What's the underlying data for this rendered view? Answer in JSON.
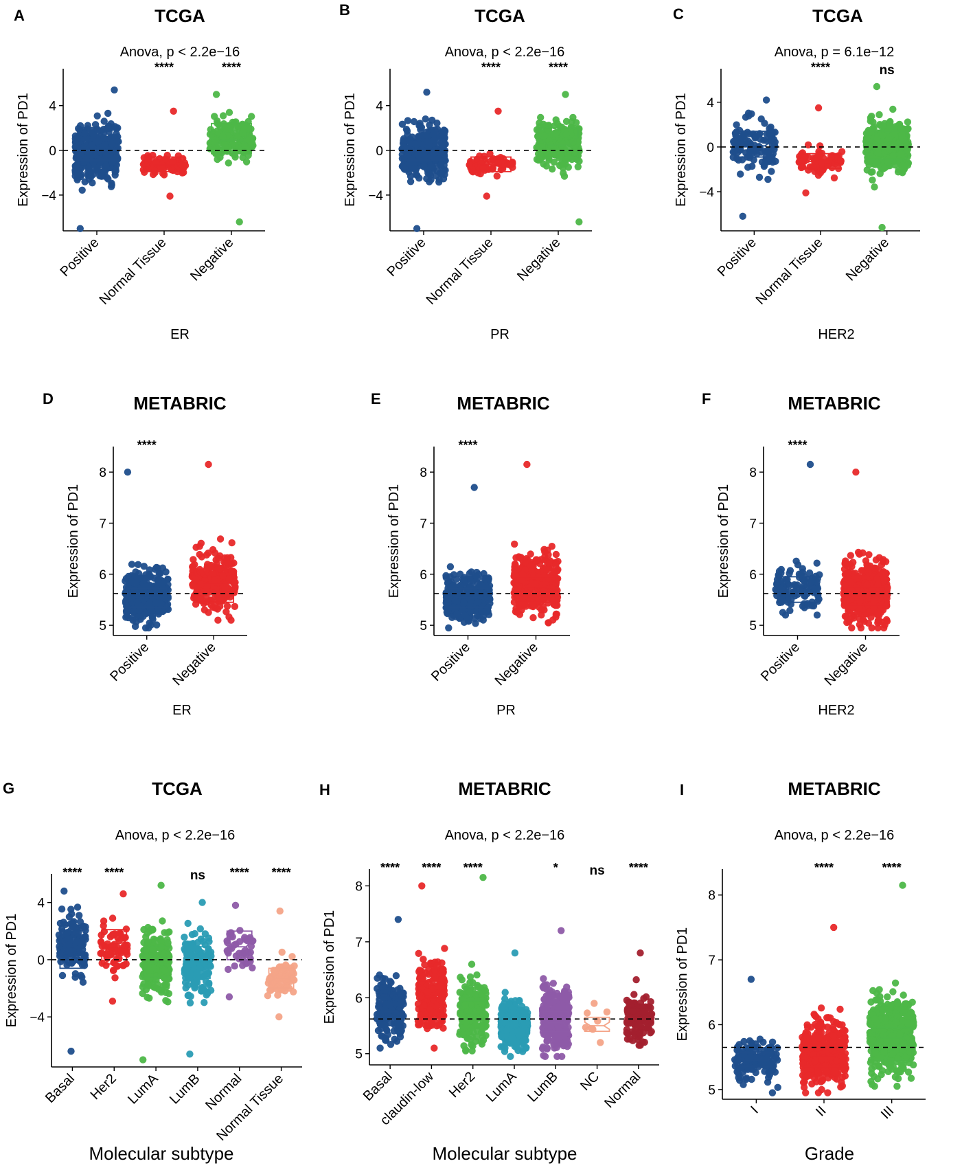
{
  "colors": {
    "Positive": "#1F4E8C",
    "Normal Tissue": "#E8292A",
    "Negative": "#4DB748",
    "Basal": "#1F4E8C",
    "Her2": "#E8292A",
    "LumA": "#4DB748",
    "LumB": "#2A9CB4",
    "Normal": "#8E5BA8",
    "Normal Tissue G": "#F4A488",
    "claudin-low": "#E8292A",
    "NC": "#F4A488",
    "Normal H": "#A3202E",
    "I": "#1F4E8C",
    "II": "#E8292A",
    "III": "#4DB748"
  },
  "chart_data": [
    {
      "panel": "A",
      "type": "box-jitter",
      "title": "TCGA",
      "subtitle": "Anova, p < 2.2e−16",
      "xlabel": "ER",
      "ylabel": "Expression of PD1",
      "ylim": [
        -7.2,
        7.3
      ],
      "yticks": [
        -4,
        0,
        4
      ],
      "ref_line": 0,
      "groups": [
        {
          "name": "Positive",
          "color": "#1F4E8C",
          "n": 420,
          "center": -0.1,
          "spread": 2.0,
          "min": -7.0,
          "max": 5.4,
          "q1": -0.9,
          "median": -0.1,
          "q3": 1.0,
          "sig": ""
        },
        {
          "name": "Normal Tissue",
          "color": "#E8292A",
          "n": 80,
          "center": -1.3,
          "spread": 0.9,
          "min": -4.1,
          "max": 3.5,
          "q1": -1.9,
          "median": -1.3,
          "q3": -0.6,
          "sig": "****"
        },
        {
          "name": "Negative",
          "color": "#4DB748",
          "n": 200,
          "center": 1.0,
          "spread": 1.7,
          "min": -6.4,
          "max": 5.0,
          "q1": -0.3,
          "median": 0.9,
          "q3": 2.4,
          "sig": "****"
        }
      ]
    },
    {
      "panel": "B",
      "type": "box-jitter",
      "title": "TCGA",
      "subtitle": "Anova, p < 2.2e−16",
      "xlabel": "PR",
      "ylabel": "Expression of PD1",
      "ylim": [
        -7.2,
        7.3
      ],
      "yticks": [
        -4,
        0,
        4
      ],
      "ref_line": 0,
      "groups": [
        {
          "name": "Positive",
          "color": "#1F4E8C",
          "n": 380,
          "center": -0.1,
          "spread": 2.0,
          "min": -7.0,
          "max": 5.2,
          "q1": -0.9,
          "median": -0.1,
          "q3": 1.0,
          "sig": ""
        },
        {
          "name": "Normal Tissue",
          "color": "#E8292A",
          "n": 80,
          "center": -1.3,
          "spread": 0.9,
          "min": -4.1,
          "max": 3.5,
          "q1": -1.9,
          "median": -1.3,
          "q3": -0.6,
          "sig": "****"
        },
        {
          "name": "Negative",
          "color": "#4DB748",
          "n": 260,
          "center": 0.6,
          "spread": 1.8,
          "min": -6.4,
          "max": 5.0,
          "q1": -0.6,
          "median": 0.5,
          "q3": 2.0,
          "sig": "****"
        }
      ]
    },
    {
      "panel": "C",
      "type": "box-jitter",
      "title": "TCGA",
      "subtitle": "Anova, p = 6.1e−12",
      "xlabel": "HER2",
      "ylabel": "Expression of PD1",
      "ylim": [
        -7.5,
        7.0
      ],
      "yticks": [
        -4,
        0,
        4
      ],
      "ref_line": 0,
      "groups": [
        {
          "name": "Positive",
          "color": "#1F4E8C",
          "n": 120,
          "center": 0.1,
          "spread": 1.8,
          "min": -6.2,
          "max": 4.2,
          "q1": -0.9,
          "median": 0.1,
          "q3": 1.4,
          "sig": ""
        },
        {
          "name": "Normal Tissue",
          "color": "#E8292A",
          "n": 80,
          "center": -1.3,
          "spread": 0.9,
          "min": -4.1,
          "max": 3.5,
          "q1": -1.9,
          "median": -1.3,
          "q3": -0.6,
          "sig": "****"
        },
        {
          "name": "Negative",
          "color": "#4DB748",
          "n": 420,
          "center": 0.0,
          "spread": 2.0,
          "min": -7.2,
          "max": 5.4,
          "q1": -1.1,
          "median": 0.0,
          "q3": 1.4,
          "sig": "ns"
        }
      ]
    },
    {
      "panel": "D",
      "type": "box-jitter",
      "title": "METABRIC",
      "subtitle": "",
      "xlabel": "ER",
      "ylabel": "Expression of PD1",
      "ylim": [
        4.8,
        8.5
      ],
      "yticks": [
        5,
        6,
        7,
        8
      ],
      "ref_line": 5.62,
      "groups": [
        {
          "name": "Positive",
          "color": "#1F4E8C",
          "n": 420,
          "center": 5.55,
          "spread": 0.4,
          "min": 4.95,
          "max": 8.0,
          "q1": 5.35,
          "median": 5.55,
          "q3": 5.72,
          "sig": "****"
        },
        {
          "name": "Negative",
          "color": "#E8292A",
          "n": 280,
          "center": 5.85,
          "spread": 0.5,
          "min": 5.1,
          "max": 8.15,
          "q1": 5.45,
          "median": 5.8,
          "q3": 6.1,
          "sig": ""
        }
      ]
    },
    {
      "panel": "E",
      "type": "box-jitter",
      "title": "METABRIC",
      "subtitle": "",
      "xlabel": "PR",
      "ylabel": "Expression of PD1",
      "ylim": [
        4.8,
        8.5
      ],
      "yticks": [
        5,
        6,
        7,
        8
      ],
      "ref_line": 5.62,
      "groups": [
        {
          "name": "Positive",
          "color": "#1F4E8C",
          "n": 320,
          "center": 5.55,
          "spread": 0.4,
          "min": 4.95,
          "max": 7.7,
          "q1": 5.35,
          "median": 5.55,
          "q3": 5.72,
          "sig": "****"
        },
        {
          "name": "Negative",
          "color": "#E8292A",
          "n": 380,
          "center": 5.8,
          "spread": 0.5,
          "min": 5.05,
          "max": 8.15,
          "q1": 5.45,
          "median": 5.75,
          "q3": 5.95,
          "sig": ""
        }
      ]
    },
    {
      "panel": "F",
      "type": "box-jitter",
      "title": "METABRIC",
      "subtitle": "",
      "xlabel": "HER2",
      "ylabel": "Expression of PD1",
      "ylim": [
        4.8,
        8.5
      ],
      "yticks": [
        5,
        6,
        7,
        8
      ],
      "ref_line": 5.62,
      "groups": [
        {
          "name": "Positive",
          "color": "#1F4E8C",
          "n": 120,
          "center": 5.75,
          "spread": 0.4,
          "min": 5.2,
          "max": 8.15,
          "q1": 5.45,
          "median": 5.7,
          "q3": 5.95,
          "sig": "****"
        },
        {
          "name": "Negative",
          "color": "#E8292A",
          "n": 480,
          "center": 5.65,
          "spread": 0.5,
          "min": 4.95,
          "max": 8.0,
          "q1": 5.4,
          "median": 5.6,
          "q3": 5.75,
          "sig": ""
        }
      ]
    },
    {
      "panel": "G",
      "type": "box-jitter",
      "title": "TCGA",
      "subtitle": "Anova, p < 2.2e−16",
      "xlabel": "Molecular subtype",
      "ylabel": "Expression of PD1",
      "ylim": [
        -7.5,
        6.0
      ],
      "yticks": [
        -4,
        0,
        4
      ],
      "ref_line": 0,
      "groups": [
        {
          "name": "Basal",
          "color": "#1F4E8C",
          "n": 140,
          "center": 1.0,
          "spread": 1.8,
          "min": -6.4,
          "max": 4.8,
          "q1": -0.6,
          "median": 0.9,
          "q3": 2.4,
          "sig": "****"
        },
        {
          "name": "Her2",
          "color": "#E8292A",
          "n": 70,
          "center": 0.8,
          "spread": 1.5,
          "min": -2.9,
          "max": 4.6,
          "q1": -0.3,
          "median": 0.8,
          "q3": 2.1,
          "sig": "****"
        },
        {
          "name": "LumA",
          "color": "#4DB748",
          "n": 260,
          "center": -0.2,
          "spread": 2.0,
          "min": -7.0,
          "max": 5.2,
          "q1": -1.2,
          "median": -0.2,
          "q3": 0.9,
          "sig": ""
        },
        {
          "name": "LumB",
          "color": "#2A9CB4",
          "n": 180,
          "center": -0.3,
          "spread": 1.9,
          "min": -6.6,
          "max": 4.0,
          "q1": -1.3,
          "median": -0.3,
          "q3": 0.9,
          "sig": "ns"
        },
        {
          "name": "Normal",
          "color": "#8E5BA8",
          "n": 45,
          "center": 0.9,
          "spread": 1.3,
          "min": -2.6,
          "max": 3.8,
          "q1": 0.0,
          "median": 0.9,
          "q3": 2.0,
          "sig": "****"
        },
        {
          "name": "Normal Tissue",
          "color": "#F4A488",
          "n": 80,
          "center": -1.3,
          "spread": 0.9,
          "min": -4.0,
          "max": 3.4,
          "q1": -2.0,
          "median": -1.3,
          "q3": -0.6,
          "sig": "****"
        }
      ]
    },
    {
      "panel": "H",
      "type": "box-jitter",
      "title": "METABRIC",
      "subtitle": "Anova, p < 2.2e−16",
      "xlabel": "Molecular subtype",
      "ylabel": "Expression of PD1",
      "ylim": [
        4.8,
        8.3
      ],
      "yticks": [
        5,
        6,
        7,
        8
      ],
      "ref_line": 5.62,
      "groups": [
        {
          "name": "Basal",
          "color": "#1F4E8C",
          "n": 200,
          "center": 5.8,
          "spread": 0.45,
          "min": 5.1,
          "max": 7.4,
          "q1": 5.5,
          "median": 5.75,
          "q3": 6.05,
          "sig": "****"
        },
        {
          "name": "claudin-low",
          "color": "#E8292A",
          "n": 220,
          "center": 6.05,
          "spread": 0.55,
          "min": 5.1,
          "max": 8.0,
          "q1": 5.65,
          "median": 6.0,
          "q3": 6.3,
          "sig": "****"
        },
        {
          "name": "Her2",
          "color": "#4DB748",
          "n": 200,
          "center": 5.75,
          "spread": 0.5,
          "min": 5.05,
          "max": 8.15,
          "q1": 5.45,
          "median": 5.7,
          "q3": 5.95,
          "sig": "****"
        },
        {
          "name": "LumA",
          "color": "#2A9CB4",
          "n": 420,
          "center": 5.5,
          "spread": 0.35,
          "min": 4.95,
          "max": 6.8,
          "q1": 5.35,
          "median": 5.5,
          "q3": 5.68,
          "sig": ""
        },
        {
          "name": "LumB",
          "color": "#8E5BA8",
          "n": 320,
          "center": 5.6,
          "spread": 0.45,
          "min": 4.95,
          "max": 7.2,
          "q1": 5.4,
          "median": 5.55,
          "q3": 5.75,
          "sig": "*"
        },
        {
          "name": "NC",
          "color": "#F4A488",
          "n": 8,
          "center": 5.55,
          "spread": 0.3,
          "min": 5.2,
          "max": 5.9,
          "q1": 5.4,
          "median": 5.5,
          "q3": 5.65,
          "sig": "ns"
        },
        {
          "name": "Normal",
          "color": "#A3202E",
          "n": 120,
          "center": 5.65,
          "spread": 0.35,
          "min": 5.15,
          "max": 6.8,
          "q1": 5.5,
          "median": 5.65,
          "q3": 5.8,
          "sig": "****"
        }
      ]
    },
    {
      "panel": "I",
      "type": "box-jitter",
      "title": "METABRIC",
      "subtitle": "Anova, p < 2.2e−16",
      "xlabel": "Grade",
      "ylabel": "Expression of PD1",
      "ylim": [
        4.85,
        8.4
      ],
      "yticks": [
        5,
        6,
        7,
        8
      ],
      "ref_line": 5.65,
      "groups": [
        {
          "name": "I",
          "color": "#1F4E8C",
          "n": 130,
          "center": 5.45,
          "spread": 0.28,
          "min": 4.95,
          "max": 6.7,
          "q1": 5.35,
          "median": 5.45,
          "q3": 5.58,
          "sig": ""
        },
        {
          "name": "II",
          "color": "#E8292A",
          "n": 420,
          "center": 5.55,
          "spread": 0.4,
          "min": 4.95,
          "max": 7.5,
          "q1": 5.35,
          "median": 5.5,
          "q3": 5.68,
          "sig": "****"
        },
        {
          "name": "III",
          "color": "#4DB748",
          "n": 460,
          "center": 5.85,
          "spread": 0.5,
          "min": 5.05,
          "max": 8.15,
          "q1": 5.45,
          "median": 5.8,
          "q3": 5.95,
          "sig": "****"
        }
      ]
    }
  ]
}
